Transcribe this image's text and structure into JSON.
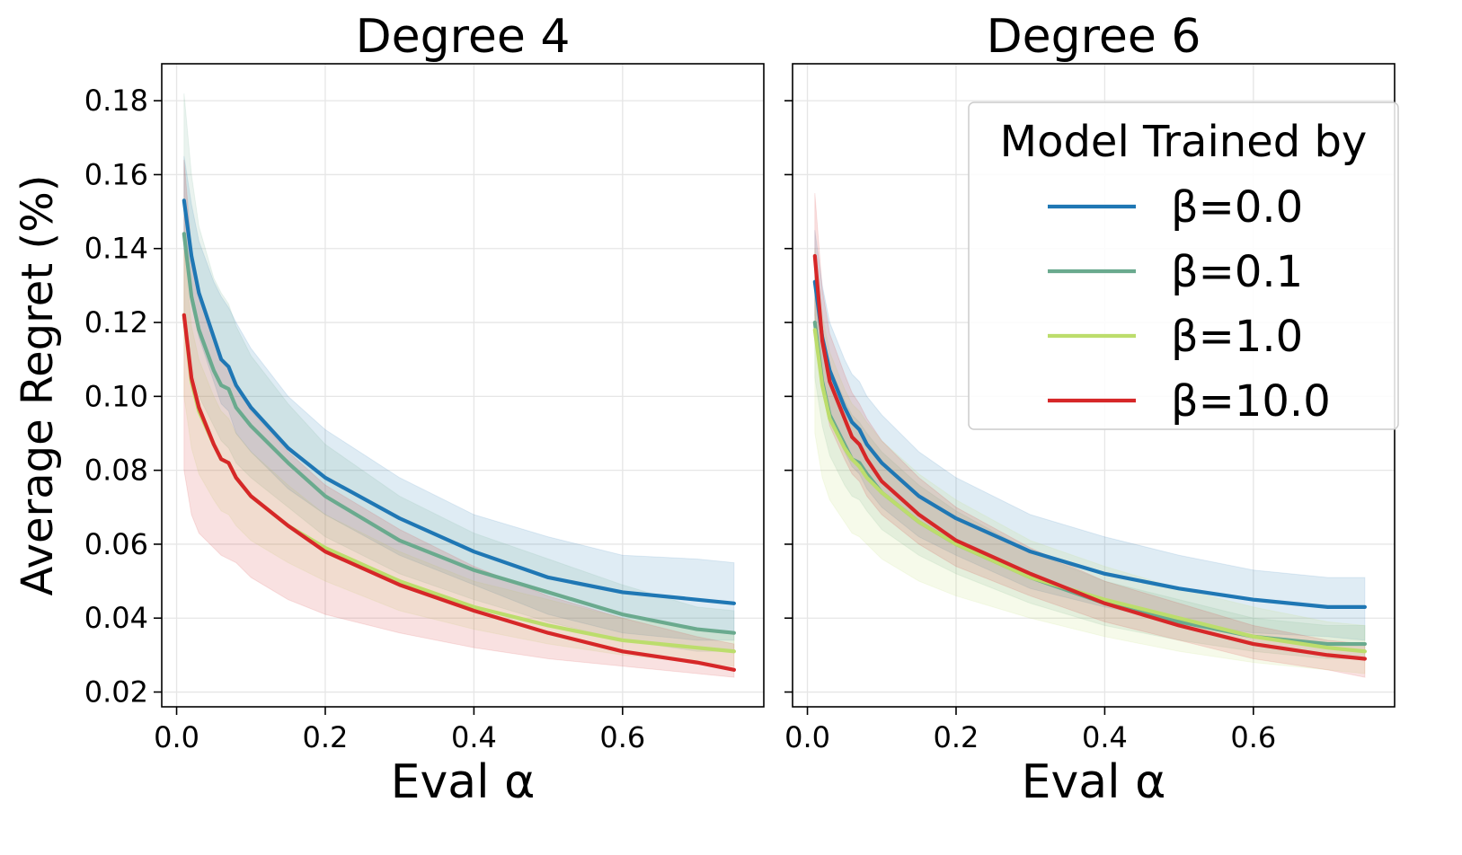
{
  "chart_data": [
    {
      "type": "line",
      "title": "Degree 4",
      "xlabel": "Eval α",
      "ylabel": "Average Regret (%)",
      "xlim": [
        -0.02,
        0.79
      ],
      "ylim": [
        0.016,
        0.19
      ],
      "xticks": [
        0.0,
        0.2,
        0.4,
        0.6
      ],
      "xtick_labels": [
        "0.0",
        "0.2",
        "0.4",
        "0.6"
      ],
      "yticks": [
        0.02,
        0.04,
        0.06,
        0.08,
        0.1,
        0.12,
        0.14,
        0.16,
        0.18
      ],
      "ytick_labels": [
        "0.02",
        "0.04",
        "0.06",
        "0.08",
        "0.10",
        "0.12",
        "0.14",
        "0.16",
        "0.18"
      ],
      "grid": true,
      "x": [
        0.01,
        0.02,
        0.03,
        0.05,
        0.06,
        0.07,
        0.08,
        0.1,
        0.15,
        0.2,
        0.3,
        0.4,
        0.5,
        0.6,
        0.7,
        0.75
      ],
      "series": [
        {
          "name": "β=0.0",
          "values": [
            0.153,
            0.138,
            0.128,
            0.116,
            0.11,
            0.108,
            0.103,
            0.097,
            0.086,
            0.078,
            0.067,
            0.058,
            0.051,
            0.047,
            0.045,
            0.044
          ],
          "lower": [
            0.14,
            0.125,
            0.116,
            0.104,
            0.098,
            0.096,
            0.09,
            0.085,
            0.075,
            0.068,
            0.057,
            0.049,
            0.041,
            0.036,
            0.034,
            0.034
          ],
          "upper": [
            0.165,
            0.152,
            0.142,
            0.131,
            0.127,
            0.124,
            0.12,
            0.113,
            0.1,
            0.091,
            0.078,
            0.068,
            0.062,
            0.057,
            0.056,
            0.055
          ]
        },
        {
          "name": "β=0.1",
          "values": [
            0.144,
            0.127,
            0.118,
            0.107,
            0.103,
            0.102,
            0.097,
            0.092,
            0.082,
            0.073,
            0.061,
            0.053,
            0.047,
            0.041,
            0.037,
            0.036
          ],
          "lower": [
            0.12,
            0.108,
            0.1,
            0.092,
            0.088,
            0.086,
            0.082,
            0.078,
            0.07,
            0.062,
            0.052,
            0.045,
            0.039,
            0.034,
            0.031,
            0.031
          ],
          "upper": [
            0.182,
            0.16,
            0.146,
            0.132,
            0.128,
            0.125,
            0.119,
            0.111,
            0.098,
            0.087,
            0.073,
            0.063,
            0.056,
            0.049,
            0.043,
            0.042
          ]
        },
        {
          "name": "β=1.0",
          "values": [
            0.122,
            0.104,
            0.096,
            0.087,
            0.083,
            0.082,
            0.078,
            0.073,
            0.065,
            0.059,
            0.05,
            0.043,
            0.038,
            0.034,
            0.032,
            0.031
          ],
          "lower": [
            0.1,
            0.086,
            0.079,
            0.072,
            0.069,
            0.068,
            0.065,
            0.061,
            0.055,
            0.05,
            0.042,
            0.037,
            0.033,
            0.03,
            0.028,
            0.027
          ],
          "upper": [
            0.14,
            0.119,
            0.11,
            0.1,
            0.096,
            0.094,
            0.09,
            0.085,
            0.076,
            0.068,
            0.058,
            0.05,
            0.045,
            0.04,
            0.037,
            0.036
          ]
        },
        {
          "name": "β=10.0",
          "values": [
            0.122,
            0.105,
            0.097,
            0.087,
            0.083,
            0.082,
            0.078,
            0.073,
            0.065,
            0.058,
            0.049,
            0.042,
            0.036,
            0.031,
            0.028,
            0.026
          ],
          "lower": [
            0.08,
            0.068,
            0.063,
            0.059,
            0.057,
            0.056,
            0.055,
            0.051,
            0.045,
            0.041,
            0.036,
            0.032,
            0.029,
            0.027,
            0.025,
            0.024
          ],
          "upper": [
            0.164,
            0.14,
            0.128,
            0.115,
            0.11,
            0.108,
            0.103,
            0.096,
            0.085,
            0.076,
            0.064,
            0.054,
            0.046,
            0.04,
            0.035,
            0.033
          ]
        }
      ]
    },
    {
      "type": "line",
      "title": "Degree 6",
      "xlabel": "Eval α",
      "ylabel": "",
      "xlim": [
        -0.02,
        0.79
      ],
      "ylim": [
        0.016,
        0.19
      ],
      "xticks": [
        0.0,
        0.2,
        0.4,
        0.6
      ],
      "xtick_labels": [
        "0.0",
        "0.2",
        "0.4",
        "0.6"
      ],
      "yticks": [
        0.02,
        0.04,
        0.06,
        0.08,
        0.1,
        0.12,
        0.14,
        0.16,
        0.18
      ],
      "ytick_labels": [],
      "grid": true,
      "x": [
        0.01,
        0.02,
        0.03,
        0.05,
        0.06,
        0.07,
        0.08,
        0.1,
        0.15,
        0.2,
        0.3,
        0.4,
        0.5,
        0.6,
        0.7,
        0.75
      ],
      "series": [
        {
          "name": "β=0.0",
          "values": [
            0.131,
            0.116,
            0.107,
            0.097,
            0.093,
            0.091,
            0.087,
            0.082,
            0.073,
            0.067,
            0.058,
            0.052,
            0.048,
            0.045,
            0.043,
            0.043
          ],
          "lower": [
            0.116,
            0.102,
            0.094,
            0.085,
            0.081,
            0.079,
            0.075,
            0.07,
            0.062,
            0.057,
            0.048,
            0.043,
            0.039,
            0.036,
            0.035,
            0.034
          ],
          "upper": [
            0.145,
            0.13,
            0.12,
            0.11,
            0.106,
            0.104,
            0.1,
            0.095,
            0.085,
            0.078,
            0.068,
            0.062,
            0.057,
            0.053,
            0.051,
            0.051
          ]
        },
        {
          "name": "β=0.1",
          "values": [
            0.12,
            0.104,
            0.095,
            0.087,
            0.083,
            0.082,
            0.079,
            0.074,
            0.066,
            0.06,
            0.051,
            0.044,
            0.039,
            0.035,
            0.033,
            0.033
          ],
          "lower": [
            0.105,
            0.092,
            0.084,
            0.076,
            0.073,
            0.072,
            0.069,
            0.064,
            0.057,
            0.052,
            0.044,
            0.038,
            0.034,
            0.031,
            0.029,
            0.029
          ],
          "upper": [
            0.135,
            0.118,
            0.108,
            0.099,
            0.095,
            0.093,
            0.09,
            0.085,
            0.076,
            0.069,
            0.058,
            0.05,
            0.045,
            0.04,
            0.038,
            0.038
          ]
        },
        {
          "name": "β=1.0",
          "values": [
            0.118,
            0.103,
            0.094,
            0.086,
            0.083,
            0.081,
            0.078,
            0.074,
            0.066,
            0.06,
            0.051,
            0.045,
            0.04,
            0.035,
            0.032,
            0.031
          ],
          "lower": [
            0.09,
            0.078,
            0.072,
            0.066,
            0.063,
            0.062,
            0.06,
            0.056,
            0.05,
            0.046,
            0.04,
            0.035,
            0.031,
            0.028,
            0.026,
            0.025
          ],
          "upper": [
            0.14,
            0.122,
            0.112,
            0.102,
            0.098,
            0.096,
            0.093,
            0.088,
            0.079,
            0.072,
            0.061,
            0.054,
            0.048,
            0.043,
            0.039,
            0.038
          ]
        },
        {
          "name": "β=10.0",
          "values": [
            0.138,
            0.115,
            0.104,
            0.094,
            0.089,
            0.087,
            0.083,
            0.077,
            0.068,
            0.061,
            0.052,
            0.044,
            0.038,
            0.033,
            0.03,
            0.029
          ],
          "lower": [
            0.122,
            0.102,
            0.092,
            0.083,
            0.079,
            0.077,
            0.073,
            0.068,
            0.06,
            0.054,
            0.046,
            0.039,
            0.034,
            0.029,
            0.026,
            0.024
          ],
          "upper": [
            0.155,
            0.129,
            0.117,
            0.106,
            0.101,
            0.098,
            0.094,
            0.088,
            0.078,
            0.07,
            0.059,
            0.05,
            0.044,
            0.038,
            0.034,
            0.033
          ]
        }
      ]
    }
  ],
  "legend": {
    "title": "Model Trained by",
    "placement": "top-right of second panel",
    "entries": [
      "β=0.0",
      "β=0.1",
      "β=1.0",
      "β=10.0"
    ]
  },
  "colors": {
    "β=0.0": "#1f77b4",
    "β=0.1": "#6aaa8e",
    "β=1.0": "#bcdd6c",
    "β=10.0": "#d62728"
  }
}
